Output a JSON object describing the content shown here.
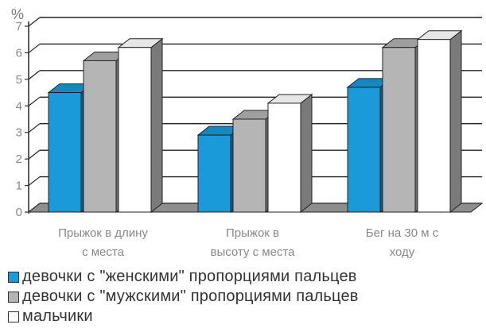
{
  "chart_data": {
    "type": "bar",
    "unit_label": "%",
    "categories": [
      [
        "Прыжок в длину",
        "с места"
      ],
      [
        "Прыжок в",
        "высоту с места"
      ],
      [
        "Бег на 30 м с",
        "ходу"
      ]
    ],
    "series": [
      {
        "name": "девочки с \"женскими\" пропорциями пальцев",
        "color": "#1a9ad9",
        "values": [
          4.5,
          2.9,
          4.7
        ]
      },
      {
        "name": "девочки с \"мужскими\" пропорциями пальцев",
        "color": "#b5b5b5",
        "values": [
          5.7,
          3.5,
          6.2
        ]
      },
      {
        "name": "мальчики",
        "color": "#ffffff",
        "values": [
          6.2,
          4.1,
          6.5
        ]
      }
    ],
    "ylim": [
      0,
      7
    ],
    "yticks": [
      0,
      1,
      2,
      3,
      4,
      5,
      6,
      7
    ],
    "grid": true,
    "style": "3d"
  }
}
